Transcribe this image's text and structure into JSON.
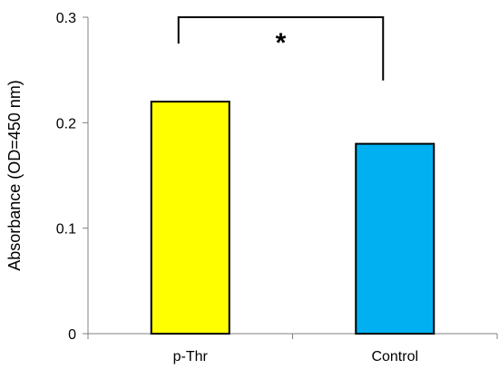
{
  "chart_data": {
    "type": "bar",
    "title": "",
    "xlabel": "",
    "ylabel": "Absorbance (OD=450 nm)",
    "ylim": [
      0,
      0.3
    ],
    "yticks": [
      "0",
      "0.1",
      "0.2",
      "0.3"
    ],
    "yticks_values": [
      0,
      0.1,
      0.2,
      0.3
    ],
    "grid": false,
    "legend": "none",
    "categories": [
      "p-Thr",
      "Control"
    ],
    "values": [
      0.22,
      0.18
    ],
    "colors": [
      "#ffff00",
      "#00b0f0"
    ],
    "annotation": {
      "text": "*",
      "between": [
        "p-Thr",
        "Control"
      ],
      "bracket_left_bottom_value": 0.275,
      "bracket_right_bottom_value": 0.24,
      "bracket_top_value": 0.3
    }
  }
}
